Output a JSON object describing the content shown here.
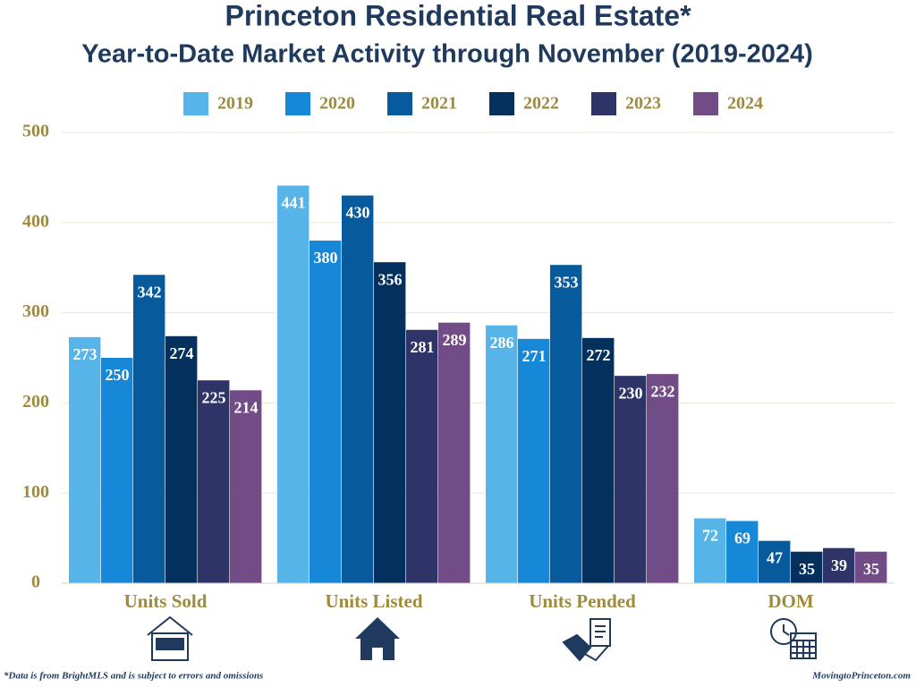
{
  "chart_data": {
    "type": "bar",
    "title": "Princeton Residential Real Estate*",
    "subtitle": "Year-to-Date Market Activity through November (2019-2024)",
    "categories": [
      "Units Sold",
      "Units Listed",
      "Units Pended",
      "DOM"
    ],
    "series": [
      {
        "name": "2019",
        "color": "#56b4e8",
        "values": [
          273,
          441,
          286,
          72
        ]
      },
      {
        "name": "2020",
        "color": "#1787d8",
        "values": [
          250,
          380,
          271,
          69
        ]
      },
      {
        "name": "2021",
        "color": "#075b9c",
        "values": [
          342,
          430,
          353,
          47
        ]
      },
      {
        "name": "2022",
        "color": "#03305c",
        "values": [
          274,
          356,
          272,
          35
        ]
      },
      {
        "name": "2023",
        "color": "#2f3468",
        "values": [
          225,
          281,
          230,
          39
        ]
      },
      {
        "name": "2024",
        "color": "#714c86",
        "values": [
          214,
          289,
          232,
          35
        ]
      }
    ],
    "ylim": [
      0,
      500
    ],
    "yticks": [
      0,
      100,
      200,
      300,
      400,
      500
    ],
    "grid": true,
    "legend": "top",
    "footnote": "*Data is from BrightMLS and is subject to errors and omissions",
    "source": "MovingtoPrinceton.com"
  }
}
